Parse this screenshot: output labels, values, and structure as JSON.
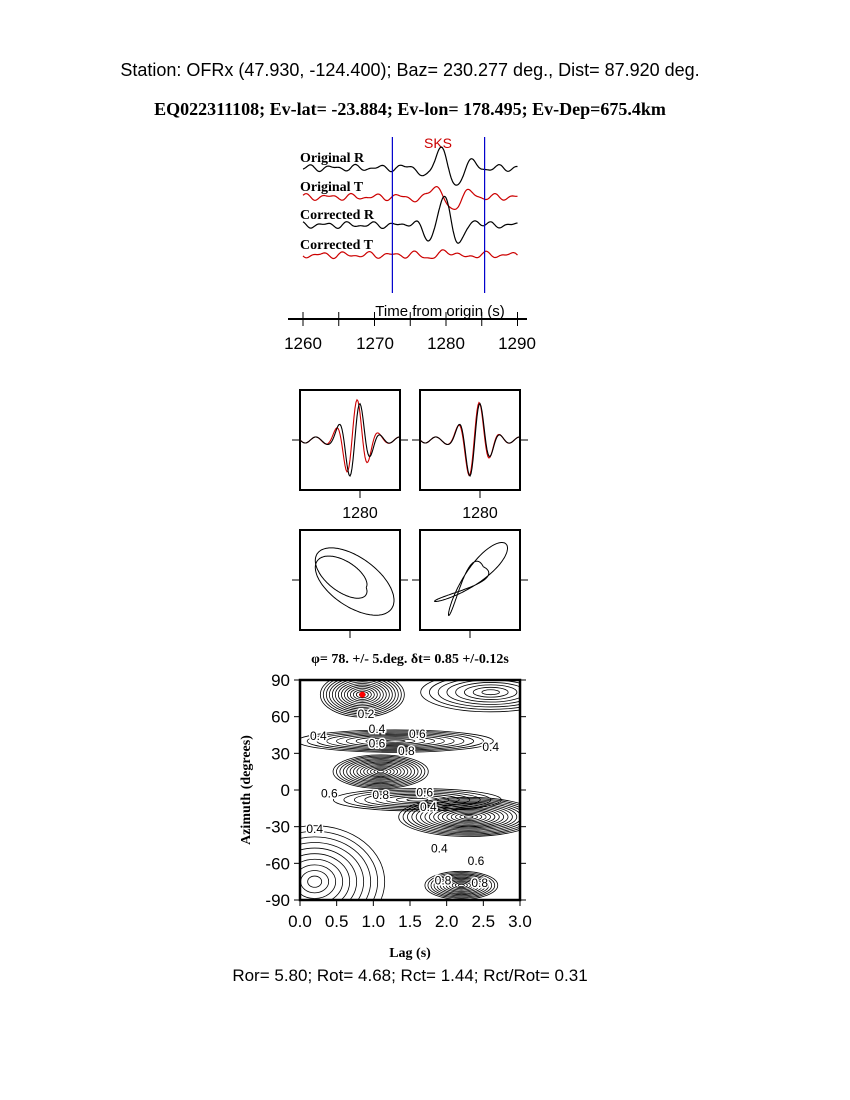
{
  "header": {
    "line1": "Station: OFRx (47.930, -124.400); Baz=  230.277 deg., Dist=   87.920 deg.",
    "line2": "EQ022311108; Ev-lat= -23.884; Ev-lon= 178.495; Ev-Dep=675.4km"
  },
  "chart_data": [
    {
      "type": "line",
      "title": "",
      "phase_label": "SKS",
      "series": [
        {
          "name": "Original R",
          "color": "#000000"
        },
        {
          "name": "Original T",
          "color": "#cc0000"
        },
        {
          "name": "Corrected R",
          "color": "#000000"
        },
        {
          "name": "Corrected T",
          "color": "#cc0000"
        }
      ],
      "xlabel": "Time from origin (s)",
      "xlim": [
        1259,
        1291
      ],
      "xticks": [
        "1260",
        "1270",
        "1280",
        "1290"
      ],
      "window": [
        1272.5,
        1285.4
      ],
      "window_color": "#0000cc"
    },
    {
      "type": "line",
      "panels": [
        "original-fast-slow",
        "corrected-fast-slow"
      ],
      "xtick_label": "1280"
    },
    {
      "type": "line",
      "panels": [
        "original-particle-motion",
        "corrected-particle-motion"
      ]
    },
    {
      "type": "heatmap",
      "title": "φ= 78. +/- 5.deg. δt= 0.85 +/-0.12s",
      "xlabel": "Lag (s)",
      "ylabel": "Azimuth (degrees)",
      "xlim": [
        0,
        3
      ],
      "ylim": [
        -90,
        90
      ],
      "xticks": [
        "0.0",
        "0.5",
        "1.0",
        "1.5",
        "2.0",
        "2.5",
        "3.0"
      ],
      "yticks": [
        "90",
        "60",
        "30",
        "0",
        "-30",
        "-60",
        "-90"
      ],
      "best": {
        "lag": 0.85,
        "azimuth": 78,
        "color": "#ff0000"
      },
      "contour_labels": [
        "0.2",
        "0.4",
        "0.6",
        "0.8"
      ]
    }
  ],
  "footer": "Ror= 5.80; Rot= 4.68; Rct= 1.44; Rct/Rot= 0.31"
}
